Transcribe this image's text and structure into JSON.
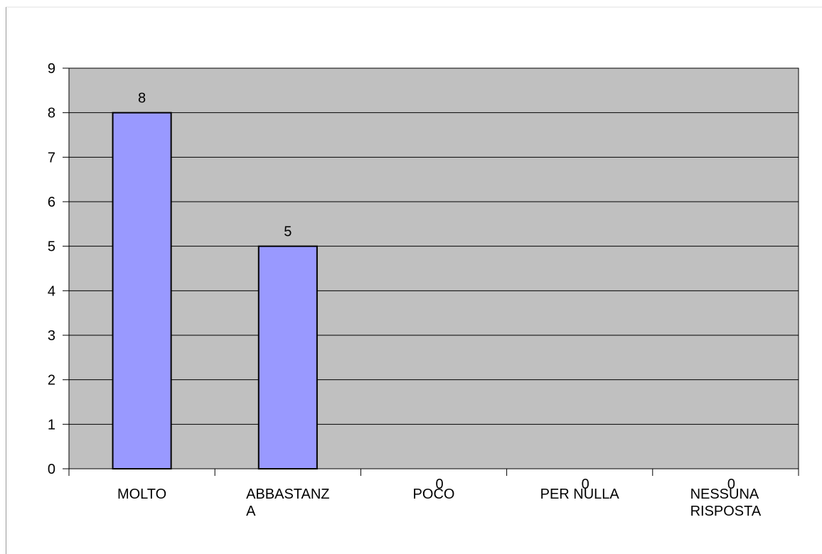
{
  "chart_data": {
    "type": "bar",
    "categories": [
      "MOLTO",
      "ABBASTANZA",
      "POCO",
      "PER NULLA",
      "NESSUNA RISPOSTA"
    ],
    "values": [
      8,
      5,
      0,
      0,
      0
    ],
    "color": "#9999ff",
    "ylim": [
      0,
      9
    ],
    "yticks": [
      0,
      1,
      2,
      3,
      4,
      5,
      6,
      7,
      8,
      9
    ],
    "grid": true
  }
}
